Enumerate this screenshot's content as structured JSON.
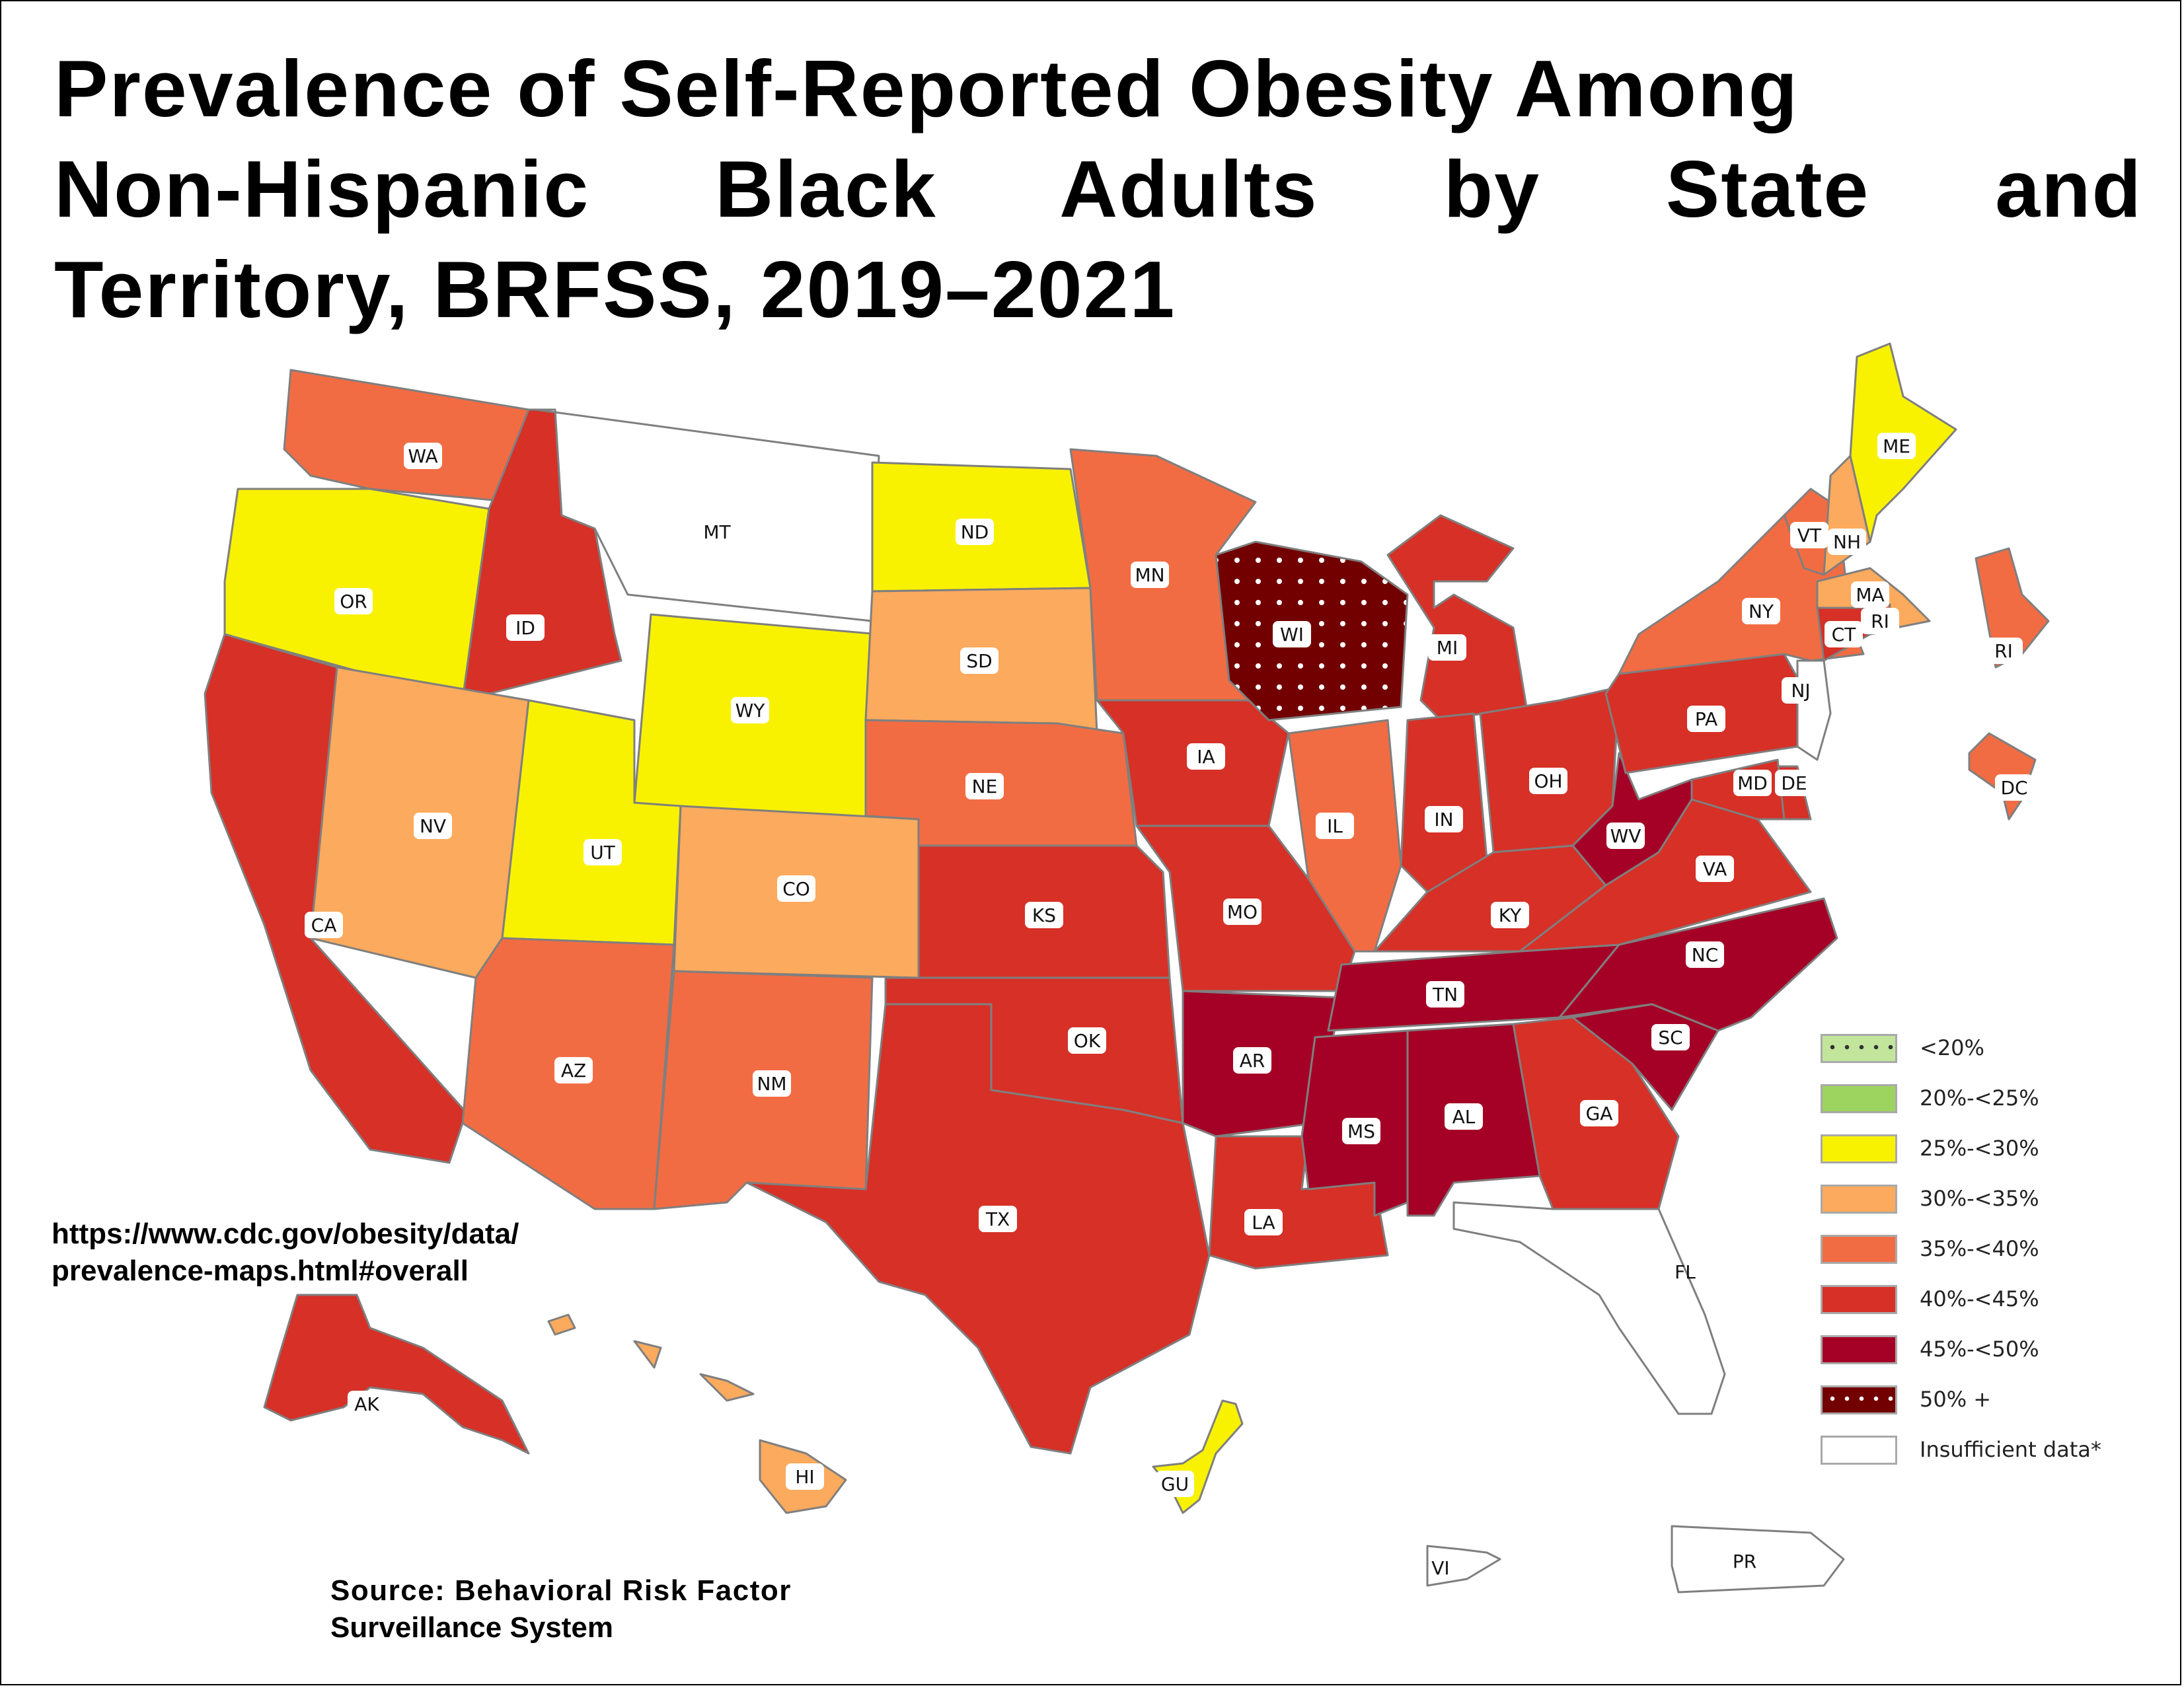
{
  "title": {
    "line1": "Prevalence of Self-Reported Obesity Among",
    "line2": "Non-Hispanic Black Adults by State and",
    "line3": "Territory, BRFSS, 2019–2021"
  },
  "url_note": {
    "line1": "https://www.cdc.gov/obesity/data/",
    "line2": "prevalence-maps.html#overall"
  },
  "source_note": {
    "line1": "Source: Behavioral Risk Factor",
    "line2": "Surveillance System"
  },
  "legend": [
    {
      "key": "lt20",
      "label": "<20%",
      "color": "#c2e59c",
      "pattern": "dots-dark"
    },
    {
      "key": "20-25",
      "label": "20%-<25%",
      "color": "#9dd35f",
      "pattern": ""
    },
    {
      "key": "25-30",
      "label": "25%-<30%",
      "color": "#f8f200",
      "pattern": ""
    },
    {
      "key": "30-35",
      "label": "30%-<35%",
      "color": "#fcaa5d",
      "pattern": ""
    },
    {
      "key": "35-40",
      "label": "35%-<40%",
      "color": "#f26c43",
      "pattern": ""
    },
    {
      "key": "40-45",
      "label": "40%-<45%",
      "color": "#d63027",
      "pattern": ""
    },
    {
      "key": "45-50",
      "label": "45%-<50%",
      "color": "#a50026",
      "pattern": ""
    },
    {
      "key": "50plus",
      "label": "50% +",
      "color": "#720000",
      "pattern": "dots-light"
    },
    {
      "key": "insufficient",
      "label": "Insufficient data*",
      "color": "#ffffff",
      "pattern": ""
    }
  ],
  "chart_data": {
    "type": "choropleth",
    "title": "Prevalence of Self-Reported Obesity Among Non-Hispanic Black Adults by State and Territory, BRFSS, 2019–2021",
    "categories": [
      "<20%",
      "20%-<25%",
      "25%-<30%",
      "30%-<35%",
      "35%-<40%",
      "40%-<45%",
      "45%-<50%",
      "50% +",
      "Insufficient data*"
    ],
    "regions": [
      {
        "abbr": "WA",
        "category": "35%-<40%"
      },
      {
        "abbr": "OR",
        "category": "25%-<30%"
      },
      {
        "abbr": "CA",
        "category": "40%-<45%"
      },
      {
        "abbr": "ID",
        "category": "40%-<45%"
      },
      {
        "abbr": "NV",
        "category": "30%-<35%"
      },
      {
        "abbr": "MT",
        "category": "Insufficient data*"
      },
      {
        "abbr": "WY",
        "category": "25%-<30%"
      },
      {
        "abbr": "UT",
        "category": "25%-<30%"
      },
      {
        "abbr": "AZ",
        "category": "35%-<40%"
      },
      {
        "abbr": "CO",
        "category": "30%-<35%"
      },
      {
        "abbr": "NM",
        "category": "35%-<40%"
      },
      {
        "abbr": "ND",
        "category": "25%-<30%"
      },
      {
        "abbr": "SD",
        "category": "30%-<35%"
      },
      {
        "abbr": "NE",
        "category": "35%-<40%"
      },
      {
        "abbr": "KS",
        "category": "40%-<45%"
      },
      {
        "abbr": "OK",
        "category": "40%-<45%"
      },
      {
        "abbr": "TX",
        "category": "40%-<45%"
      },
      {
        "abbr": "MN",
        "category": "35%-<40%"
      },
      {
        "abbr": "IA",
        "category": "40%-<45%"
      },
      {
        "abbr": "MO",
        "category": "40%-<45%"
      },
      {
        "abbr": "AR",
        "category": "45%-<50%"
      },
      {
        "abbr": "LA",
        "category": "40%-<45%"
      },
      {
        "abbr": "WI",
        "category": "50% +"
      },
      {
        "abbr": "IL",
        "category": "35%-<40%"
      },
      {
        "abbr": "MI",
        "category": "40%-<45%"
      },
      {
        "abbr": "IN",
        "category": "40%-<45%"
      },
      {
        "abbr": "OH",
        "category": "40%-<45%"
      },
      {
        "abbr": "KY",
        "category": "40%-<45%"
      },
      {
        "abbr": "TN",
        "category": "45%-<50%"
      },
      {
        "abbr": "MS",
        "category": "45%-<50%"
      },
      {
        "abbr": "AL",
        "category": "45%-<50%"
      },
      {
        "abbr": "GA",
        "category": "40%-<45%"
      },
      {
        "abbr": "FL",
        "category": "Insufficient data*"
      },
      {
        "abbr": "SC",
        "category": "45%-<50%"
      },
      {
        "abbr": "NC",
        "category": "45%-<50%"
      },
      {
        "abbr": "VA",
        "category": "40%-<45%"
      },
      {
        "abbr": "WV",
        "category": "45%-<50%"
      },
      {
        "abbr": "PA",
        "category": "40%-<45%"
      },
      {
        "abbr": "NY",
        "category": "35%-<40%"
      },
      {
        "abbr": "VT",
        "category": "35%-<40%"
      },
      {
        "abbr": "NH",
        "category": "30%-<35%"
      },
      {
        "abbr": "ME",
        "category": "25%-<30%"
      },
      {
        "abbr": "MA",
        "category": "30%-<35%"
      },
      {
        "abbr": "RI",
        "category": "35%-<40%"
      },
      {
        "abbr": "CT",
        "category": "40%-<45%"
      },
      {
        "abbr": "NJ",
        "category": "Insufficient data*"
      },
      {
        "abbr": "DE",
        "category": "40%-<45%"
      },
      {
        "abbr": "MD",
        "category": "40%-<45%"
      },
      {
        "abbr": "DC",
        "category": "35%-<40%"
      },
      {
        "abbr": "AK",
        "category": "40%-<45%"
      },
      {
        "abbr": "HI",
        "category": "30%-<35%"
      },
      {
        "abbr": "GU",
        "category": "25%-<30%"
      },
      {
        "abbr": "PR",
        "category": "Insufficient data*"
      },
      {
        "abbr": "VI",
        "category": "Insufficient data*"
      }
    ]
  }
}
